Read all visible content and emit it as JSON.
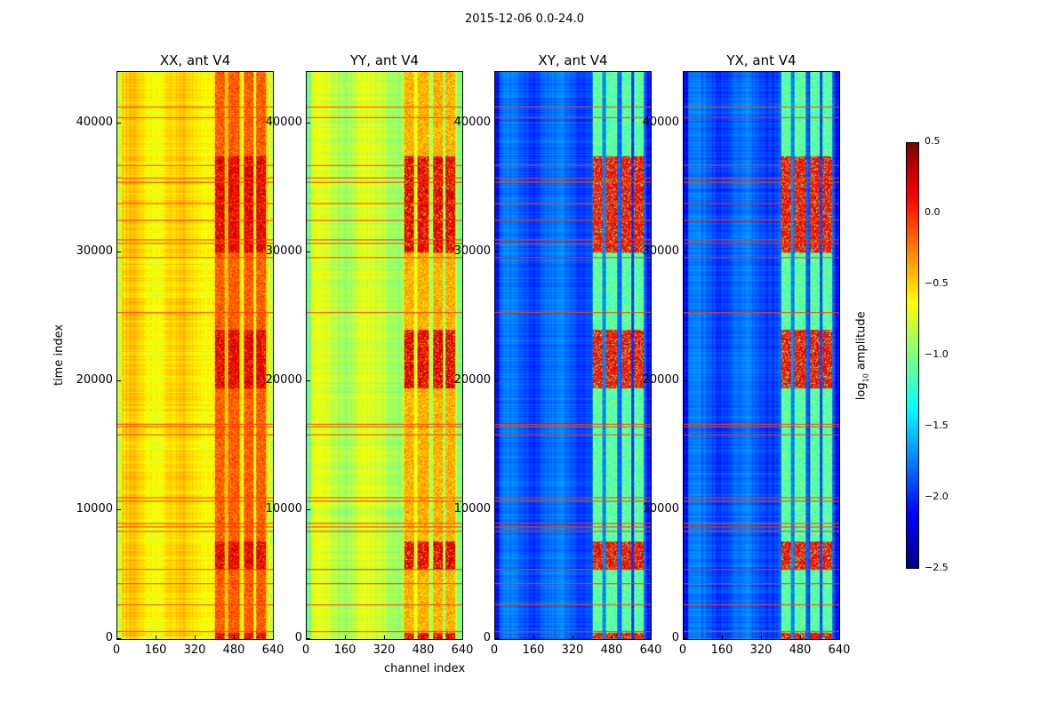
{
  "chart_data": {
    "type": "heatmap",
    "title": "2015-12-06 0.0-24.0",
    "xlabel": "channel index",
    "ylabel": "time index",
    "xlim": [
      0,
      640
    ],
    "ylim": [
      0,
      44000
    ],
    "xticks": [
      "0",
      "160",
      "320",
      "480",
      "640"
    ],
    "yticks": [
      "0",
      "10000",
      "20000",
      "30000",
      "40000"
    ],
    "panels": [
      {
        "title": "XX, ant V4",
        "baseline": -0.55,
        "band_level": -0.15,
        "hot_level": 0.4
      },
      {
        "title": "YY, ant V4",
        "baseline": -0.8,
        "band_level": -0.4,
        "hot_level": 0.4
      },
      {
        "title": "XY, ant V4",
        "baseline": -1.85,
        "band_level": -1.1,
        "hot_level": 0.3
      },
      {
        "title": "YX, ant V4",
        "baseline": -1.85,
        "band_level": -1.1,
        "hot_level": 0.3
      }
    ],
    "bright_channel_bands": [
      [
        400,
        440
      ],
      [
        455,
        500
      ],
      [
        520,
        560
      ],
      [
        570,
        610
      ]
    ],
    "hot_time_ranges": [
      [
        5500,
        7600
      ],
      [
        19500,
        24000
      ],
      [
        30000,
        37500
      ],
      [
        0,
        500
      ]
    ],
    "rfi_time_rows": [
      600,
      2700,
      4300,
      5400,
      8400,
      8700,
      9000,
      10700,
      11000,
      15900,
      16500,
      16700,
      25400,
      29600,
      30700,
      31000,
      32500,
      33800,
      35500,
      35800,
      36800,
      40500,
      41300
    ],
    "colorbar": {
      "label": "log10 amplitude",
      "label_main": "log",
      "label_sub": "10",
      "label_rest": " amplitude",
      "range": [
        -2.5,
        0.5
      ],
      "ticks": [
        "0.5",
        "0.0",
        "−0.5",
        "−1.0",
        "−1.5",
        "−2.0",
        "−2.5"
      ],
      "colormap": "jet"
    }
  }
}
